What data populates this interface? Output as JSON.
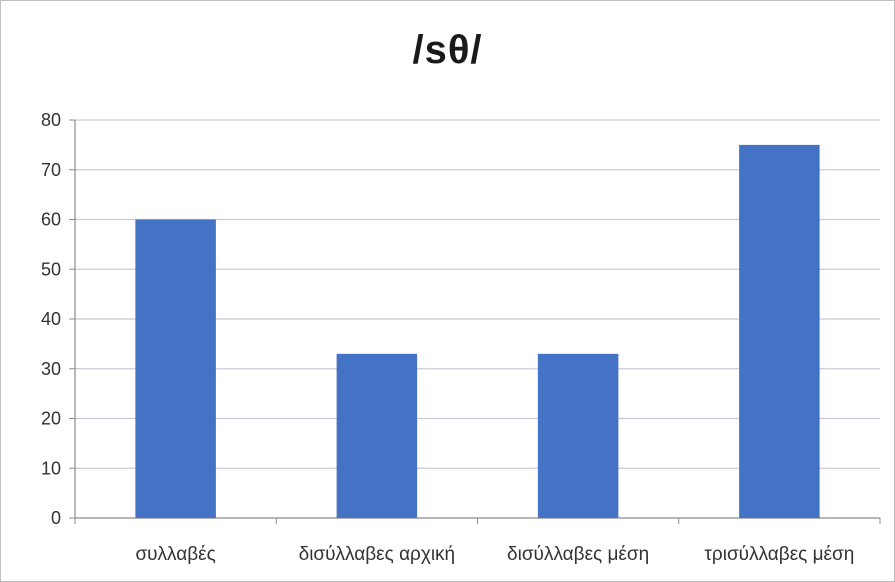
{
  "chart_data": {
    "type": "bar",
    "title": "/sθ/",
    "categories": [
      "συλλαβές",
      "δισύλλαβες αρχική",
      "δισύλλαβες μέση",
      "τρισύλλαβες μέση"
    ],
    "values": [
      60,
      33,
      33,
      75
    ],
    "ylim": [
      0,
      80
    ],
    "yticks": [
      0,
      10,
      20,
      30,
      40,
      50,
      60,
      70,
      80
    ],
    "xlabel": "",
    "ylabel": "",
    "grid": true,
    "legend": "none",
    "bar_color": "#4472c4",
    "grid_color": "#c9c9d9",
    "axis_color": "#8c8c8c"
  }
}
